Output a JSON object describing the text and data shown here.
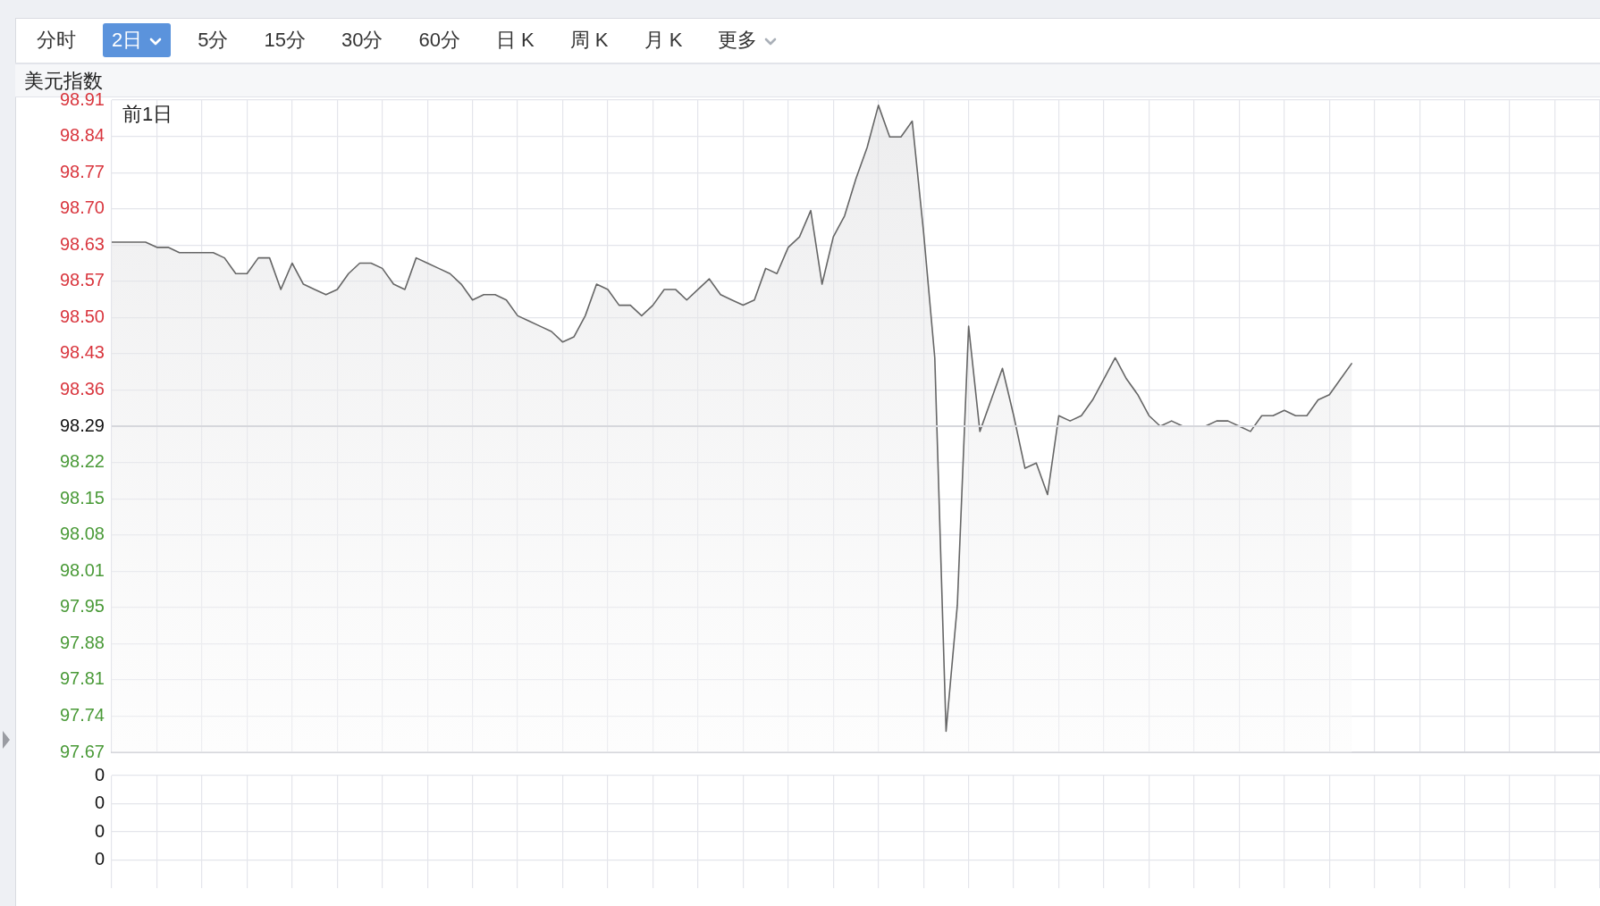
{
  "chart_data": [
    {
      "type": "area",
      "title": "美元指数",
      "annotations": [
        "前1日",
        "分时",
        "2日",
        "5分",
        "15分",
        "30分",
        "60分",
        "日 K",
        "周 K",
        "月 K",
        "更多"
      ],
      "categories": [
        null,
        null,
        null,
        null,
        null,
        null,
        null,
        null,
        null,
        null,
        null,
        null,
        null,
        null,
        null,
        null,
        null,
        null,
        null,
        null,
        null,
        null,
        null,
        null,
        null,
        null,
        null,
        null,
        null,
        null,
        null,
        null,
        null,
        null,
        null,
        null,
        null,
        null,
        null,
        null,
        null,
        null,
        null,
        null,
        null,
        null,
        null,
        null,
        null,
        null,
        null,
        null,
        null,
        null,
        null,
        null,
        null,
        null,
        null,
        null,
        null,
        null,
        null,
        null,
        null,
        null,
        null,
        null,
        null,
        null,
        null,
        null,
        null,
        null,
        null,
        null,
        null,
        null,
        null,
        null,
        null,
        null,
        null,
        null,
        null,
        null,
        null,
        null,
        null,
        null,
        null,
        null,
        null,
        null,
        null,
        null,
        null,
        null,
        null,
        null,
        null,
        null,
        null,
        null,
        null,
        null,
        null,
        null,
        null,
        null,
        null,
        null,
        null,
        null,
        null,
        null,
        null,
        null,
        null,
        null,
        null,
        null,
        null,
        null,
        null,
        null,
        null,
        null,
        null,
        null,
        null,
        null,
        null
      ],
      "series": [
        {
          "color": "#666666",
          "values": [
            98.64,
            98.64,
            98.64,
            98.64,
            98.63,
            98.63,
            98.62,
            98.62,
            98.62,
            98.62,
            98.61,
            98.58,
            98.58,
            98.61,
            98.61,
            98.55,
            98.6,
            98.56,
            98.55,
            98.54,
            98.55,
            98.58,
            98.6,
            98.6,
            98.59,
            98.56,
            98.55,
            98.61,
            98.6,
            98.59,
            98.58,
            98.56,
            98.53,
            98.54,
            98.54,
            98.53,
            98.5,
            98.49,
            98.48,
            98.47,
            98.45,
            98.46,
            98.5,
            98.56,
            98.55,
            98.52,
            98.52,
            98.5,
            98.52,
            98.55,
            98.55,
            98.53,
            98.55,
            98.57,
            98.54,
            98.53,
            98.52,
            98.53,
            98.59,
            98.58,
            98.63,
            98.65,
            98.7,
            98.56,
            98.65,
            98.69,
            98.76,
            98.82,
            98.9,
            98.84,
            98.84,
            98.87,
            98.66,
            98.42,
            97.71,
            97.95,
            98.48,
            98.28,
            98.34,
            98.4,
            98.31,
            98.21,
            98.22,
            98.16,
            98.31,
            98.3,
            98.31,
            98.34,
            98.38,
            98.42,
            98.38,
            98.35,
            98.31,
            98.29,
            98.3,
            98.29,
            98.29,
            98.29,
            98.3,
            98.3,
            98.29,
            98.28,
            98.31,
            98.31,
            98.32,
            98.31,
            98.31,
            98.34,
            98.35,
            98.38,
            98.41,
            null,
            null,
            null,
            null,
            null,
            null,
            null,
            null,
            null,
            null,
            null,
            null,
            null,
            null,
            null,
            null,
            null,
            null,
            null,
            null,
            null,
            null
          ]
        }
      ],
      "ylim": [
        97.67,
        98.91
      ],
      "yticks": [
        {
          "value": 98.91,
          "label": "98.91"
        },
        {
          "value": 98.8411,
          "label": "98.84"
        },
        {
          "value": 98.7722,
          "label": "98.77"
        },
        {
          "value": 98.7033,
          "label": "98.70"
        },
        {
          "value": 98.6344,
          "label": "98.63"
        },
        {
          "value": 98.5656,
          "label": "98.57"
        },
        {
          "value": 98.4967,
          "label": "98.50"
        },
        {
          "value": 98.4278,
          "label": "98.43"
        },
        {
          "value": 98.3589,
          "label": "98.36"
        },
        {
          "value": 98.29,
          "label": "98.29"
        },
        {
          "value": 98.2211,
          "label": "98.22"
        },
        {
          "value": 98.1522,
          "label": "98.15"
        },
        {
          "value": 98.0833,
          "label": "98.08"
        },
        {
          "value": 98.0144,
          "label": "98.01"
        },
        {
          "value": 97.9456,
          "label": "97.95"
        },
        {
          "value": 97.8767,
          "label": "97.88"
        },
        {
          "value": 97.8078,
          "label": "97.81"
        },
        {
          "value": 97.7389,
          "label": "97.74"
        },
        {
          "value": 97.67,
          "label": "97.67"
        }
      ],
      "ref_lines": [
        {
          "axis": "y",
          "value": 98.29,
          "color": "#d6d7dc"
        }
      ],
      "grid": true,
      "marker": "none",
      "tick_labels": "y"
    },
    {
      "type": "other",
      "annotations": [
        "0",
        "0",
        "0",
        "0"
      ]
    }
  ]
}
